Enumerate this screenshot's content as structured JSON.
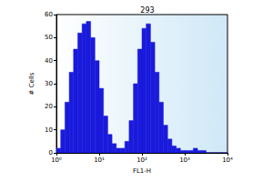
{
  "chart_data": {
    "type": "histogram",
    "title": "293",
    "x_label": "FL1-H",
    "y_label": "# Cells",
    "bins": [
      1,
      1.259,
      1.585,
      1.995,
      2.512,
      3.162,
      3.981,
      5.012,
      6.31,
      7.943,
      10,
      12.59,
      15.85,
      19.95,
      25.12,
      31.62,
      39.81,
      50.12,
      63.1,
      79.43,
      100,
      125.9,
      158.5,
      199.5,
      251.2,
      316.2,
      398.1,
      501.2,
      631,
      794.3,
      1000,
      1259,
      1585,
      1995,
      2512,
      3162,
      3981,
      5012,
      6310,
      7943,
      10000
    ],
    "counts": [
      2,
      10,
      22,
      35,
      45,
      52,
      56,
      57,
      50,
      40,
      28,
      16,
      8,
      4,
      2,
      2,
      5,
      14,
      30,
      45,
      54,
      56,
      48,
      35,
      22,
      12,
      6,
      3,
      2,
      1,
      1,
      1,
      2,
      1,
      1,
      0,
      0,
      0,
      0,
      0
    ],
    "color": "#1a1adc",
    "log": "x",
    "xlim": [
      1,
      10000
    ],
    "xticks": [
      {
        "value": 1,
        "label": "10⁰"
      },
      {
        "value": 10,
        "label": "10¹"
      },
      {
        "value": 100,
        "label": "10²"
      },
      {
        "value": 1000,
        "label": "10³"
      },
      {
        "value": 10000,
        "label": "10⁴"
      }
    ],
    "ylim": [
      0,
      60
    ],
    "yticks": [
      0,
      10,
      20,
      30,
      40,
      50,
      60
    ],
    "grid": false
  }
}
